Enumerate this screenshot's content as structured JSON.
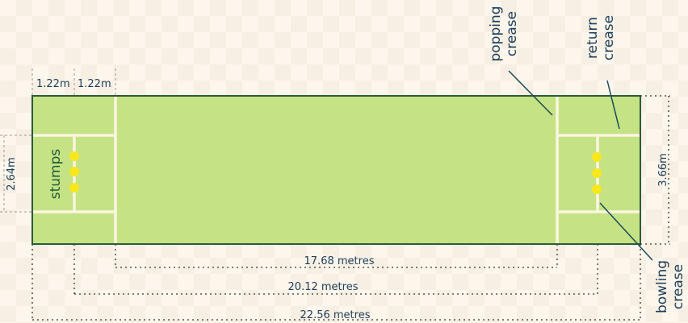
{
  "labels": {
    "popping_crease": [
      "popping",
      "crease"
    ],
    "return_crease": [
      "return",
      "crease"
    ],
    "bowling_crease": [
      "bowling",
      "crease"
    ],
    "stumps": "stumps"
  },
  "dimensions": {
    "width_left_1": "1.22m",
    "width_left_2": "1.22m",
    "stumps_width": "2.64m",
    "pitch_width": "3.66m",
    "popping_to_popping": "17.68 metres",
    "bowling_to_bowling": "20.12 metres",
    "total_length": "22.56 metres"
  },
  "colors": {
    "pitch": "#c5e384",
    "border": "#2d5a3a",
    "crease": "#fbf5e2",
    "stumps": "#f8e71c",
    "text": "#1c3d5a"
  }
}
